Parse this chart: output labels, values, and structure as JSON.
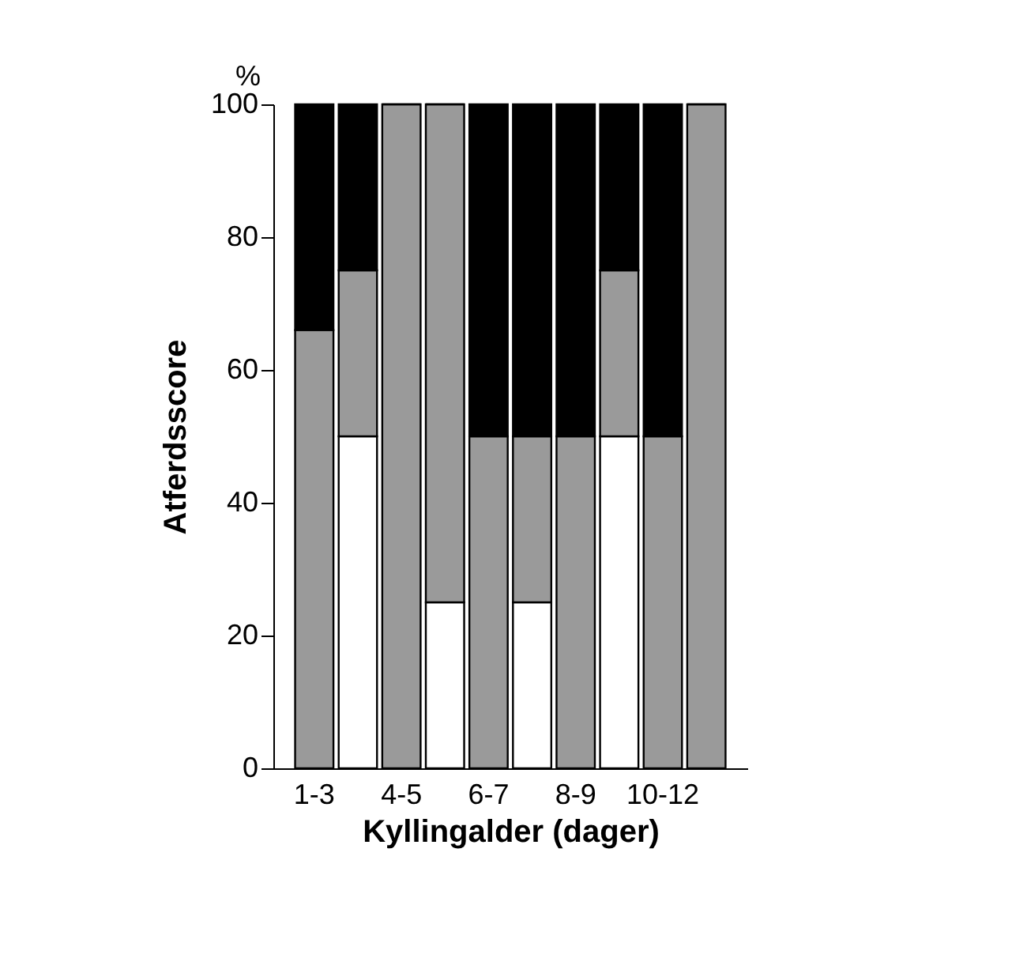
{
  "chart_data": {
    "type": "bar",
    "stacked": true,
    "categories": [
      "1-3",
      null,
      "4-5",
      null,
      "6-7",
      null,
      "8-9",
      null,
      "10-12",
      null
    ],
    "series": [
      {
        "color": "#ffffff",
        "values": [
          0,
          50,
          0,
          25,
          0,
          25,
          0,
          50,
          0,
          0
        ]
      },
      {
        "color": "#9a9a9a",
        "values": [
          66,
          25,
          100,
          75,
          50,
          25,
          50,
          25,
          50,
          100
        ]
      },
      {
        "color": "#000000",
        "values": [
          34,
          25,
          0,
          0,
          50,
          50,
          50,
          25,
          50,
          0
        ]
      }
    ],
    "xlabel": "Kyllingalder (dager)",
    "ylabel": "Atferdsscore",
    "annotations": [
      "%"
    ],
    "ylim": [
      0,
      100
    ],
    "yticks": [
      0,
      20,
      40,
      60,
      80,
      100
    ],
    "grid": false
  }
}
